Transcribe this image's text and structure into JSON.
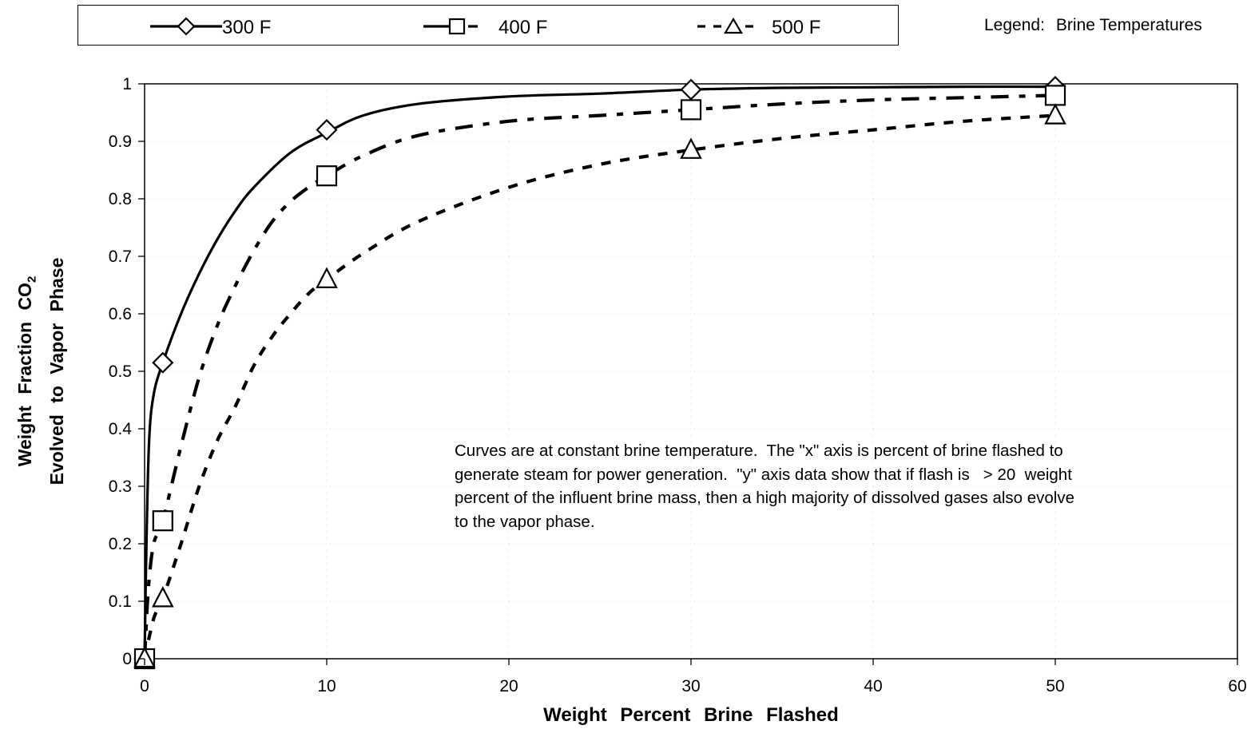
{
  "chart_data": {
    "type": "line",
    "xlabel": "Weight Percent Brine Flashed",
    "ylabel": {
      "line1_prefix": "Weight Fraction CO",
      "line1_subscript": "2",
      "line2": "Evolved to Vapor Phase"
    },
    "xlim": [
      0,
      60
    ],
    "ylim": [
      0,
      1
    ],
    "xticks": [
      "0",
      "10",
      "20",
      "30",
      "40",
      "50",
      "60"
    ],
    "yticks": [
      "0",
      "0.1",
      "0.2",
      "0.3",
      "0.4",
      "0.5",
      "0.6",
      "0.7",
      "0.8",
      "0.9",
      "1"
    ],
    "legend": {
      "placement": "top",
      "title_prefix": "Legend:",
      "title": "Brine Temperatures"
    },
    "series": [
      {
        "name": "300 F",
        "marker": "diamond",
        "line_style": "solid",
        "x": [
          0,
          1,
          10,
          30,
          50
        ],
        "y": [
          0,
          0.515,
          0.92,
          0.99,
          0.995
        ],
        "curve_x": [
          0,
          0.1,
          0.25,
          0.5,
          1,
          2,
          3,
          4,
          5,
          6,
          8,
          10,
          12,
          15,
          20,
          25,
          30,
          35,
          40,
          45,
          50
        ],
        "curve_y": [
          0,
          0.2,
          0.38,
          0.46,
          0.515,
          0.6,
          0.67,
          0.73,
          0.78,
          0.82,
          0.88,
          0.915,
          0.945,
          0.965,
          0.978,
          0.983,
          0.99,
          0.993,
          0.994,
          0.995,
          0.995
        ]
      },
      {
        "name": "400 F",
        "marker": "square",
        "line_style": "dash-dot",
        "x": [
          0,
          1,
          10,
          30,
          50
        ],
        "y": [
          0,
          0.24,
          0.84,
          0.955,
          0.98
        ],
        "curve_x": [
          0,
          0.2,
          0.5,
          1,
          2,
          3,
          4,
          5,
          6,
          7,
          8,
          9,
          10,
          12,
          15,
          20,
          25,
          30,
          35,
          40,
          45,
          50
        ],
        "curve_y": [
          0,
          0.12,
          0.2,
          0.24,
          0.37,
          0.49,
          0.58,
          0.65,
          0.71,
          0.76,
          0.795,
          0.82,
          0.84,
          0.875,
          0.91,
          0.935,
          0.945,
          0.955,
          0.965,
          0.972,
          0.976,
          0.98
        ]
      },
      {
        "name": "500 F",
        "marker": "triangle",
        "line_style": "dash",
        "x": [
          0,
          1,
          10,
          30,
          50
        ],
        "y": [
          0,
          0.105,
          0.66,
          0.885,
          0.945
        ],
        "curve_x": [
          0,
          0.5,
          1,
          2,
          3,
          4,
          5,
          6,
          7,
          8,
          9,
          10,
          12,
          15,
          20,
          25,
          30,
          35,
          40,
          45,
          50
        ],
        "curve_y": [
          0,
          0.07,
          0.105,
          0.2,
          0.3,
          0.38,
          0.44,
          0.51,
          0.56,
          0.6,
          0.635,
          0.66,
          0.705,
          0.76,
          0.82,
          0.86,
          0.885,
          0.905,
          0.92,
          0.935,
          0.945
        ]
      }
    ],
    "annotation": "Curves are at constant brine temperature.  The \"x\" axis is percent of brine flashed to\ngenerate steam for power generation.  \"y\" axis data show that if flash is   > 20  weight\npercent of the influent brine mass, then a high majority of dissolved gases also evolve\nto the vapor phase."
  }
}
